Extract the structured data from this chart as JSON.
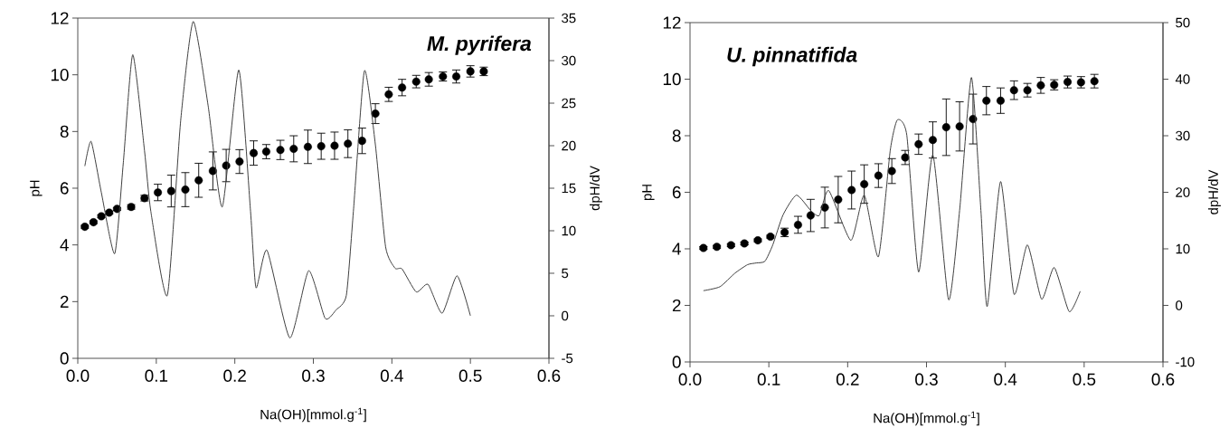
{
  "chart_data": [
    {
      "type": "scatter",
      "annotations": [
        "M. pyrifera"
      ],
      "xlabel": "Na(OH)[mmol.g$^{-1}$]",
      "ylabel": "pH",
      "y2label": "dpH/dV",
      "xlim": [
        0,
        0.6
      ],
      "xticks": [
        {
          "value": 0,
          "label": "0.0"
        },
        {
          "value": 0.1,
          "label": "0.1"
        },
        {
          "value": 0.2,
          "label": "0.2"
        },
        {
          "value": 0.3,
          "label": "0.3"
        },
        {
          "value": 0.4,
          "label": "0.4"
        },
        {
          "value": 0.5,
          "label": "0.5"
        },
        {
          "value": 0.6,
          "label": "0.6"
        }
      ],
      "ylim": [
        0,
        12
      ],
      "yticks": [
        0,
        2,
        4,
        6,
        8,
        10,
        12
      ],
      "y2lim": [
        -5,
        35
      ],
      "y2ticks": [
        -5,
        0,
        5,
        10,
        15,
        20,
        25,
        30,
        35
      ],
      "series": [
        {
          "marker": "circle",
          "color": "#000000",
          "x": [
            0.009,
            0.02,
            0.03,
            0.04,
            0.05,
            0.068,
            0.085,
            0.102,
            0.119,
            0.137,
            0.154,
            0.172,
            0.189,
            0.206,
            0.224,
            0.24,
            0.258,
            0.275,
            0.293,
            0.31,
            0.327,
            0.344,
            0.362,
            0.379,
            0.396,
            0.413,
            0.431,
            0.447,
            0.465,
            0.482,
            0.5,
            0.517
          ],
          "values": [
            4.64,
            4.8,
            5.01,
            5.14,
            5.27,
            5.34,
            5.65,
            5.85,
            5.9,
            5.95,
            6.28,
            6.61,
            6.8,
            6.94,
            7.24,
            7.29,
            7.35,
            7.39,
            7.46,
            7.48,
            7.5,
            7.57,
            7.67,
            8.63,
            9.31,
            9.55,
            9.76,
            9.84,
            9.94,
            9.94,
            10.12,
            10.12
          ],
          "errors": [
            0.05,
            0.05,
            0.05,
            0.05,
            0.05,
            0.08,
            0.1,
            0.29,
            0.56,
            0.6,
            0.6,
            0.67,
            0.57,
            0.42,
            0.43,
            0.25,
            0.34,
            0.46,
            0.59,
            0.46,
            0.48,
            0.49,
            0.45,
            0.35,
            0.25,
            0.29,
            0.22,
            0.24,
            0.16,
            0.23,
            0.2,
            0.15
          ]
        },
        {
          "type": "line",
          "axis": "y2",
          "color": "#404040",
          "x": [
            0.009,
            0.017,
            0.03,
            0.047,
            0.058,
            0.07,
            0.085,
            0.093,
            0.114,
            0.131,
            0.147,
            0.166,
            0.184,
            0.205,
            0.22,
            0.227,
            0.241,
            0.27,
            0.294,
            0.315,
            0.329,
            0.342,
            0.351,
            0.365,
            0.379,
            0.392,
            0.404,
            0.413,
            0.431,
            0.446,
            0.464,
            0.483,
            0.5
          ],
          "values": [
            17.6,
            20.5,
            14.5,
            7.3,
            18.0,
            30.7,
            19.4,
            12.3,
            2.4,
            22.9,
            34.6,
            24.7,
            12.8,
            28.9,
            12.3,
            3.3,
            7.7,
            -2.6,
            5.3,
            -0.3,
            0.7,
            2.4,
            12.3,
            28.8,
            20.1,
            8.1,
            5.6,
            5.5,
            2.8,
            3.7,
            0.3,
            4.7,
            0.0
          ]
        }
      ]
    },
    {
      "type": "scatter",
      "annotations": [
        "U. pinnatifida"
      ],
      "xlabel": "Na(OH)[mmol.g$^{-1}$]",
      "ylabel": "pH",
      "y2label": "dpH/dV",
      "xlim": [
        0,
        0.6
      ],
      "xticks": [
        {
          "value": 0,
          "label": "0.0"
        },
        {
          "value": 0.1,
          "label": "0.1"
        },
        {
          "value": 0.2,
          "label": "0.2"
        },
        {
          "value": 0.3,
          "label": "0.3"
        },
        {
          "value": 0.4,
          "label": "0.4"
        },
        {
          "value": 0.5,
          "label": "0.5"
        },
        {
          "value": 0.6,
          "label": "0.6"
        }
      ],
      "ylim": [
        0,
        12
      ],
      "yticks": [
        0,
        2,
        4,
        6,
        8,
        10,
        12
      ],
      "y2lim": [
        -10,
        50
      ],
      "y2ticks": [
        -10,
        0,
        10,
        20,
        30,
        40,
        50
      ],
      "series": [
        {
          "marker": "circle",
          "color": "#000000",
          "x": [
            0.017,
            0.034,
            0.052,
            0.069,
            0.086,
            0.102,
            0.12,
            0.137,
            0.153,
            0.171,
            0.188,
            0.205,
            0.221,
            0.239,
            0.256,
            0.273,
            0.29,
            0.308,
            0.325,
            0.342,
            0.359,
            0.376,
            0.394,
            0.411,
            0.428,
            0.445,
            0.462,
            0.479,
            0.496,
            0.513
          ],
          "values": [
            4.03,
            4.07,
            4.13,
            4.19,
            4.3,
            4.43,
            4.58,
            4.85,
            5.18,
            5.46,
            5.74,
            6.08,
            6.29,
            6.59,
            6.75,
            7.23,
            7.7,
            7.85,
            8.3,
            8.33,
            8.59,
            9.24,
            9.24,
            9.61,
            9.61,
            9.78,
            9.8,
            9.9,
            9.89,
            9.93
          ],
          "errors": [
            0.05,
            0.05,
            0.05,
            0.05,
            0.05,
            0.05,
            0.15,
            0.3,
            0.57,
            0.72,
            0.82,
            0.67,
            0.68,
            0.42,
            0.44,
            0.25,
            0.36,
            0.64,
            1.0,
            0.87,
            0.88,
            0.5,
            0.45,
            0.33,
            0.24,
            0.28,
            0.18,
            0.21,
            0.2,
            0.24
          ]
        },
        {
          "type": "line",
          "axis": "y2",
          "color": "#404040",
          "x": [
            0.017,
            0.038,
            0.057,
            0.073,
            0.084,
            0.095,
            0.105,
            0.118,
            0.135,
            0.153,
            0.164,
            0.176,
            0.204,
            0.221,
            0.239,
            0.254,
            0.263,
            0.275,
            0.29,
            0.308,
            0.328,
            0.342,
            0.357,
            0.369,
            0.377,
            0.394,
            0.411,
            0.428,
            0.446,
            0.462,
            0.481,
            0.495
          ],
          "values": [
            2.6,
            3.3,
            5.7,
            7.2,
            7.5,
            7.8,
            10.7,
            16.0,
            19.5,
            16.8,
            15.9,
            20.3,
            11.5,
            19.5,
            8.6,
            27.4,
            32.8,
            30.1,
            5.9,
            26.6,
            1.0,
            16.8,
            40.3,
            16.8,
            -0.2,
            21.9,
            2.0,
            10.7,
            1.1,
            6.7,
            -1.1,
            2.5
          ]
        }
      ]
    }
  ]
}
